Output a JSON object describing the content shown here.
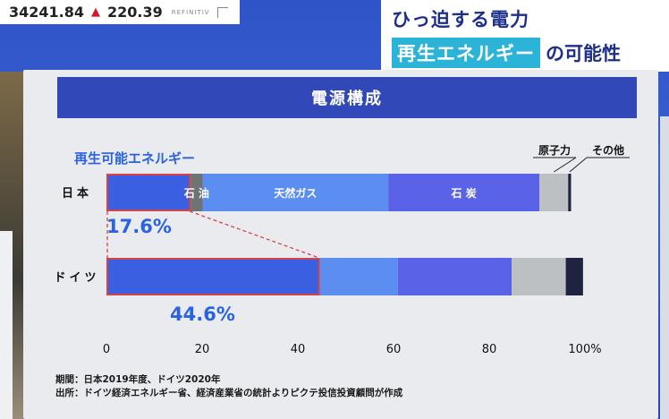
{
  "ticker": {
    "value": "34241.84",
    "change": "220.39",
    "source": "REFINITIV"
  },
  "headline": {
    "line1": "ひっ迫する電力",
    "highlight": "再生エネルギー",
    "suffix": "の可能性"
  },
  "footnotes": {
    "period": "期間：日本2019年度、ドイツ2020年",
    "source": "出所：ドイツ経済エネルギー省、経済産業省の統計よりピクテ投信投資顧問が作成"
  },
  "chart_data": {
    "type": "bar",
    "orientation": "horizontal-stacked",
    "title": "電源構成",
    "categories": [
      "日本",
      "ドイツ"
    ],
    "series": [
      {
        "name": "再生可能エネルギー",
        "values": [
          17.6,
          44.6
        ],
        "color": "#3a5fe0",
        "outline": "#d2434a"
      },
      {
        "name": "石油",
        "values": [
          2.5,
          0.0
        ],
        "color": "#6f7472"
      },
      {
        "name": "天然ガス",
        "values": [
          38.8,
          16.3
        ],
        "color": "#5b8ef0"
      },
      {
        "name": "石炭",
        "values": [
          31.6,
          23.8
        ],
        "color": "#5a62e8"
      },
      {
        "name": "原子力",
        "values": [
          6.0,
          11.3
        ],
        "color": "#bcc0c3"
      },
      {
        "name": "その他",
        "values": [
          0.6,
          3.6
        ],
        "color": "#1d2340"
      }
    ],
    "inbar_labels": {
      "石油": "石 油",
      "天然ガス": "天然ガス",
      "石炭": "石 炭"
    },
    "callouts": [
      "原子力",
      "その他"
    ],
    "data_labels": [
      "17.6%",
      "44.6%"
    ],
    "xticks": [
      "0",
      "20",
      "40",
      "60",
      "80",
      "100%"
    ],
    "xlim": [
      0,
      100
    ],
    "grid": false
  }
}
